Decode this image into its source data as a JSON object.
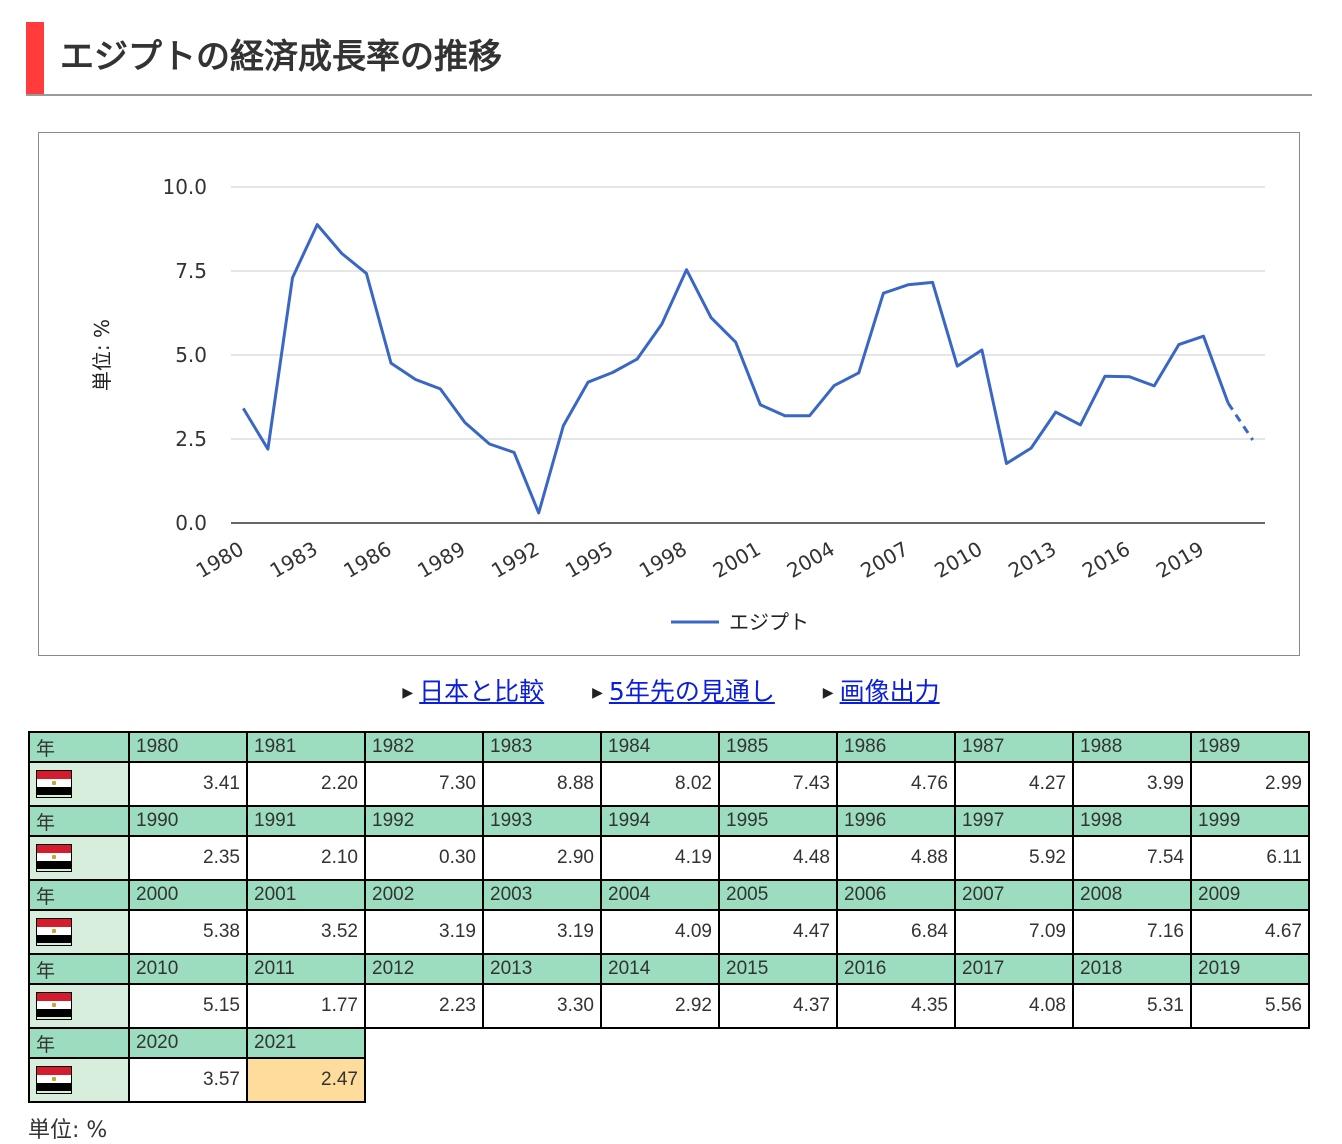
{
  "title": "エジプトの経済成長率の推移",
  "chart_data": {
    "type": "line",
    "title": "",
    "ylabel": "単位: %",
    "xlabel": "",
    "ylim": [
      0,
      10
    ],
    "y_ticks": [
      "0.0",
      "2.5",
      "5.0",
      "7.5",
      "10.0"
    ],
    "x_tick_labels": [
      "1980",
      "1983",
      "1986",
      "1989",
      "1992",
      "1995",
      "1998",
      "2001",
      "2004",
      "2007",
      "2010",
      "2013",
      "2016",
      "2019"
    ],
    "x": [
      1980,
      1981,
      1982,
      1983,
      1984,
      1985,
      1986,
      1987,
      1988,
      1989,
      1990,
      1991,
      1992,
      1993,
      1994,
      1995,
      1996,
      1997,
      1998,
      1999,
      2000,
      2001,
      2002,
      2003,
      2004,
      2005,
      2006,
      2007,
      2008,
      2009,
      2010,
      2011,
      2012,
      2013,
      2014,
      2015,
      2016,
      2017,
      2018,
      2019,
      2020,
      2021
    ],
    "series": [
      {
        "name": "エジプト",
        "color": "#3a67c4",
        "values": [
          3.41,
          2.2,
          7.3,
          8.88,
          8.02,
          7.43,
          4.76,
          4.27,
          3.99,
          2.99,
          2.35,
          2.1,
          0.3,
          2.9,
          4.19,
          4.48,
          4.88,
          5.92,
          7.54,
          6.11,
          5.38,
          3.52,
          3.19,
          3.19,
          4.09,
          4.47,
          6.84,
          7.09,
          7.16,
          4.67,
          5.15,
          1.77,
          2.23,
          3.3,
          2.92,
          4.37,
          4.35,
          4.08,
          5.31,
          5.56,
          3.57,
          2.47
        ],
        "dashed_from": 2020
      }
    ],
    "legend": "bottom",
    "grid": true
  },
  "links": [
    "日本と比較",
    "5年先の見通し",
    "画像出力"
  ],
  "table": {
    "header_label": "年",
    "flag_icon": "egypt-flag-icon",
    "rows": [
      {
        "years": [
          "1980",
          "1981",
          "1982",
          "1983",
          "1984",
          "1985",
          "1986",
          "1987",
          "1988",
          "1989"
        ],
        "values": [
          "3.41",
          "2.20",
          "7.30",
          "8.88",
          "8.02",
          "7.43",
          "4.76",
          "4.27",
          "3.99",
          "2.99"
        ]
      },
      {
        "years": [
          "1990",
          "1991",
          "1992",
          "1993",
          "1994",
          "1995",
          "1996",
          "1997",
          "1998",
          "1999"
        ],
        "values": [
          "2.35",
          "2.10",
          "0.30",
          "2.90",
          "4.19",
          "4.48",
          "4.88",
          "5.92",
          "7.54",
          "6.11"
        ]
      },
      {
        "years": [
          "2000",
          "2001",
          "2002",
          "2003",
          "2004",
          "2005",
          "2006",
          "2007",
          "2008",
          "2009"
        ],
        "values": [
          "5.38",
          "3.52",
          "3.19",
          "3.19",
          "4.09",
          "4.47",
          "6.84",
          "7.09",
          "7.16",
          "4.67"
        ]
      },
      {
        "years": [
          "2010",
          "2011",
          "2012",
          "2013",
          "2014",
          "2015",
          "2016",
          "2017",
          "2018",
          "2019"
        ],
        "values": [
          "5.15",
          "1.77",
          "2.23",
          "3.30",
          "2.92",
          "4.37",
          "4.35",
          "4.08",
          "5.31",
          "5.56"
        ]
      },
      {
        "years": [
          "2020",
          "2021"
        ],
        "values": [
          "3.57",
          "2.47"
        ]
      }
    ],
    "highlight_color": "#fedc9c"
  },
  "unit_note": "単位: %"
}
